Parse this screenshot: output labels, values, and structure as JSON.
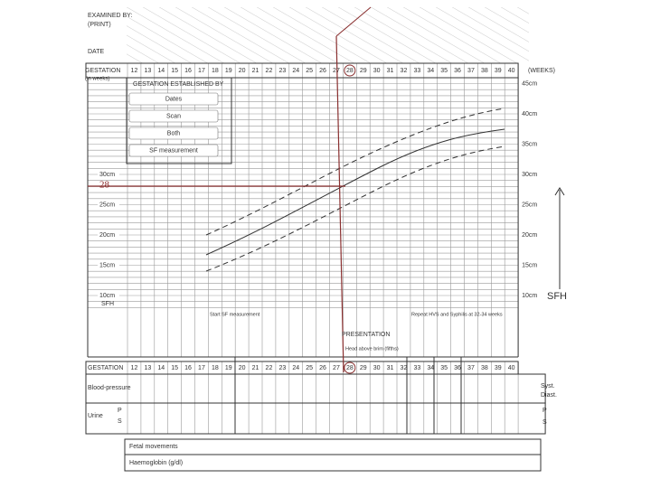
{
  "header": {
    "examined_by": "EXAMINED BY:",
    "print": "(PRINT)",
    "date": "DATE"
  },
  "gestation_label": "GESTATION",
  "gestation_unit": "(in weeks)",
  "weeks_label": "(WEEKS)",
  "weeks": [
    "12",
    "13",
    "14",
    "15",
    "16",
    "17",
    "18",
    "19",
    "20",
    "21",
    "22",
    "23",
    "24",
    "25",
    "26",
    "27",
    "28",
    "29",
    "30",
    "31",
    "32",
    "33",
    "34",
    "35",
    "36",
    "37",
    "38",
    "39",
    "40"
  ],
  "established": {
    "title": "GESTATION ESTABLISHED BY",
    "options": [
      "Dates",
      "Scan",
      "Both",
      "SF measurement"
    ]
  },
  "left_scale": [
    {
      "label": "30cm",
      "cm": 30
    },
    {
      "label": "25cm",
      "cm": 25
    },
    {
      "label": "20cm",
      "cm": 20
    },
    {
      "label": "15cm",
      "cm": 15
    },
    {
      "label": "10cm",
      "cm": 10
    }
  ],
  "right_scale": [
    {
      "label": "45cm",
      "cm": 45
    },
    {
      "label": "40cm",
      "cm": 40
    },
    {
      "label": "35cm",
      "cm": 35
    },
    {
      "label": "30cm",
      "cm": 30
    },
    {
      "label": "25cm",
      "cm": 25
    },
    {
      "label": "20cm",
      "cm": 20
    },
    {
      "label": "15cm",
      "cm": 15
    },
    {
      "label": "10cm",
      "cm": 10
    }
  ],
  "sfh_small": "SFH",
  "sfh_big": "SFH",
  "handwritten_value": "28",
  "notes": {
    "start": "Start SF measurement",
    "repeat": "Repeat HVS and Syphilis at 32-34 weeks"
  },
  "presentation": "PRESENTATION",
  "head_above_brim": "Head above brim (fifths)",
  "bottom_gestation": "GESTATION",
  "rows": {
    "bp": "Blood-pressure",
    "urine": "Urine",
    "p": "P",
    "s": "S",
    "systolic": "Syst.",
    "diastolic": "Diast.",
    "p2": "P",
    "s2": "S",
    "fetal": "Fetal movements",
    "hb": "Haemoglobin (g/dl)"
  }
}
